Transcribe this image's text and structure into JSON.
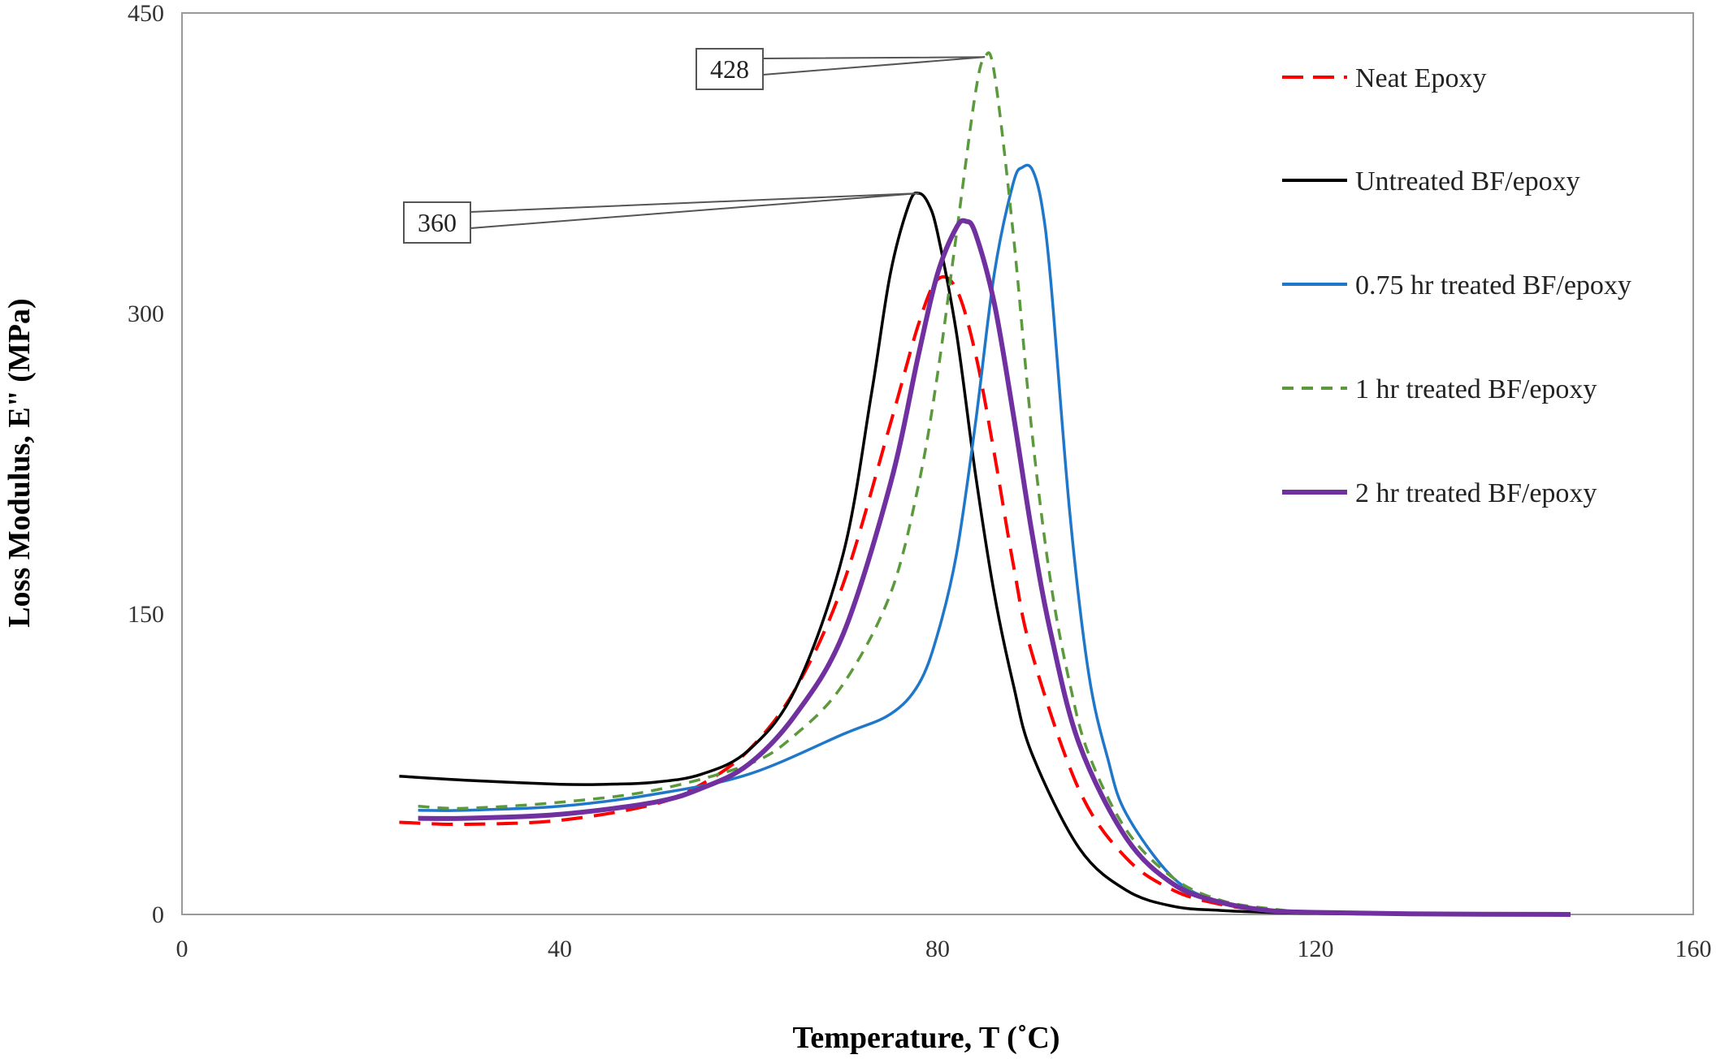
{
  "chart_data": {
    "type": "line",
    "title": "",
    "xlabel": "Temperature,  T (˚C)",
    "ylabel": "Loss Modulus,  E\" (MPa)",
    "xlim": [
      0,
      160
    ],
    "ylim": [
      0,
      450
    ],
    "xticks": [
      0,
      40,
      80,
      120,
      160
    ],
    "yticks": [
      0,
      150,
      300,
      450
    ],
    "grid": false,
    "legend_position": "right",
    "series": [
      {
        "name": "Neat Epoxy",
        "color": "#ff0000",
        "dash": "dashed",
        "x": [
          23,
          30,
          40,
          50,
          55,
          60,
          65,
          70,
          75,
          78,
          80,
          82,
          84,
          86,
          88,
          90,
          95,
          100,
          105,
          110,
          115,
          120,
          130,
          140,
          147
        ],
        "y": [
          46,
          45,
          47,
          55,
          65,
          82,
          113,
          165,
          245,
          295,
          317,
          312,
          280,
          230,
          175,
          130,
          62,
          28,
          12,
          5,
          2,
          1,
          0.5,
          0.2,
          0
        ]
      },
      {
        "name": "Untreated BF/epoxy",
        "color": "#000000",
        "dash": "solid",
        "x": [
          23,
          30,
          40,
          45,
          50,
          55,
          60,
          65,
          70,
          73,
          75,
          77,
          78,
          79,
          80,
          82,
          84,
          86,
          88,
          90,
          95,
          100,
          105,
          110,
          115,
          120,
          130,
          147
        ],
        "y": [
          69,
          67,
          65,
          65,
          66,
          70,
          82,
          113,
          180,
          260,
          320,
          355,
          360,
          355,
          340,
          290,
          220,
          160,
          115,
          80,
          33,
          12,
          4,
          2,
          1,
          0.5,
          0,
          0
        ]
      },
      {
        "name": "0.75 hr treated BF/epoxy",
        "color": "#1f77c9",
        "dash": "solid",
        "x": [
          25,
          30,
          40,
          50,
          60,
          70,
          75,
          78,
          80,
          82,
          84,
          86,
          88,
          89,
          90,
          91,
          92,
          94,
          96,
          98,
          100,
          105,
          110,
          115,
          120,
          130,
          147
        ],
        "y": [
          52,
          52,
          54,
          60,
          70,
          90,
          100,
          115,
          140,
          180,
          245,
          320,
          365,
          373,
          372,
          355,
          315,
          200,
          120,
          78,
          50,
          18,
          6,
          2,
          1,
          0.3,
          0
        ]
      },
      {
        "name": "1 hr treated BF/epoxy",
        "color": "#5b9a3c",
        "dash": "short-dashed",
        "x": [
          25,
          30,
          40,
          50,
          60,
          65,
          70,
          75,
          78,
          80,
          82,
          84,
          85,
          86,
          88,
          90,
          92,
          94,
          96,
          100,
          105,
          110,
          115,
          120,
          130,
          147
        ],
        "y": [
          54,
          53,
          56,
          62,
          75,
          90,
          115,
          160,
          215,
          270,
          340,
          410,
          428,
          420,
          340,
          240,
          165,
          115,
          80,
          42,
          18,
          7,
          3,
          1,
          0.3,
          0
        ]
      },
      {
        "name": "2 hr treated BF/epoxy",
        "color": "#7030a0",
        "dash": "solid",
        "x": [
          25,
          30,
          40,
          50,
          55,
          60,
          65,
          70,
          75,
          78,
          80,
          82,
          83,
          84,
          86,
          88,
          90,
          92,
          95,
          100,
          105,
          110,
          115,
          120,
          130,
          147
        ],
        "y": [
          48,
          48,
          50,
          56,
          63,
          75,
          100,
          140,
          215,
          280,
          320,
          343,
          346,
          340,
          305,
          250,
          190,
          140,
          85,
          38,
          15,
          6,
          2,
          1,
          0.3,
          0
        ]
      }
    ],
    "annotations": [
      {
        "text": "428",
        "x": 85,
        "y": 428
      },
      {
        "text": "360",
        "x": 78,
        "y": 360
      }
    ]
  }
}
